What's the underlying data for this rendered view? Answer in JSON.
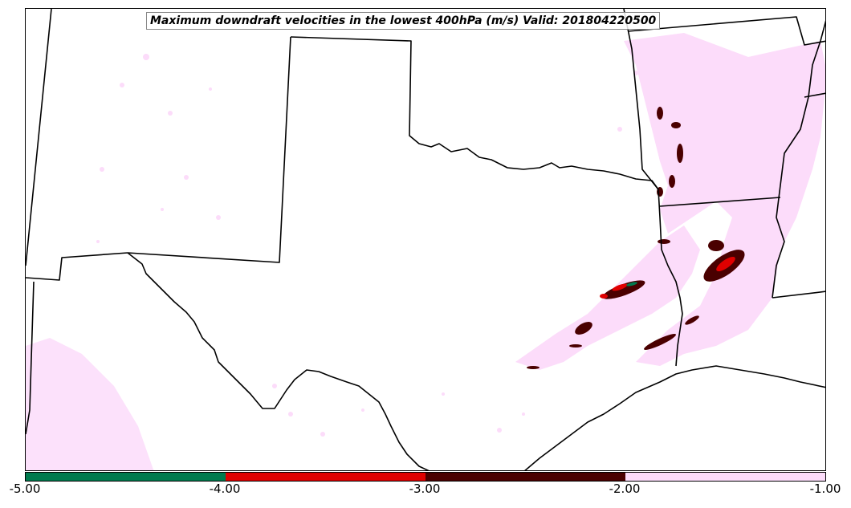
{
  "title": "Maximum downdraft velocities in the lowest 400hPa (m/s) Valid: 201804220500",
  "colorbar": {
    "segments": [
      {
        "from": -5.0,
        "to": -4.0,
        "color": "#007a4e"
      },
      {
        "from": -4.0,
        "to": -3.0,
        "color": "#e00000"
      },
      {
        "from": -3.0,
        "to": -2.0,
        "color": "#4a0000"
      },
      {
        "from": -2.0,
        "to": -1.0,
        "color": "#fcdcfa"
      }
    ],
    "ticks": [
      "-5.00",
      "-4.00",
      "-3.00",
      "-2.00",
      "-1.00"
    ]
  },
  "map": {
    "region": "Southern Plains / Texas",
    "boundary_color": "#000000",
    "field_colors": {
      "weak": "#fcdcfa",
      "moderate": "#4a0000",
      "strong": "#e00000",
      "extreme": "#007a4e"
    }
  }
}
